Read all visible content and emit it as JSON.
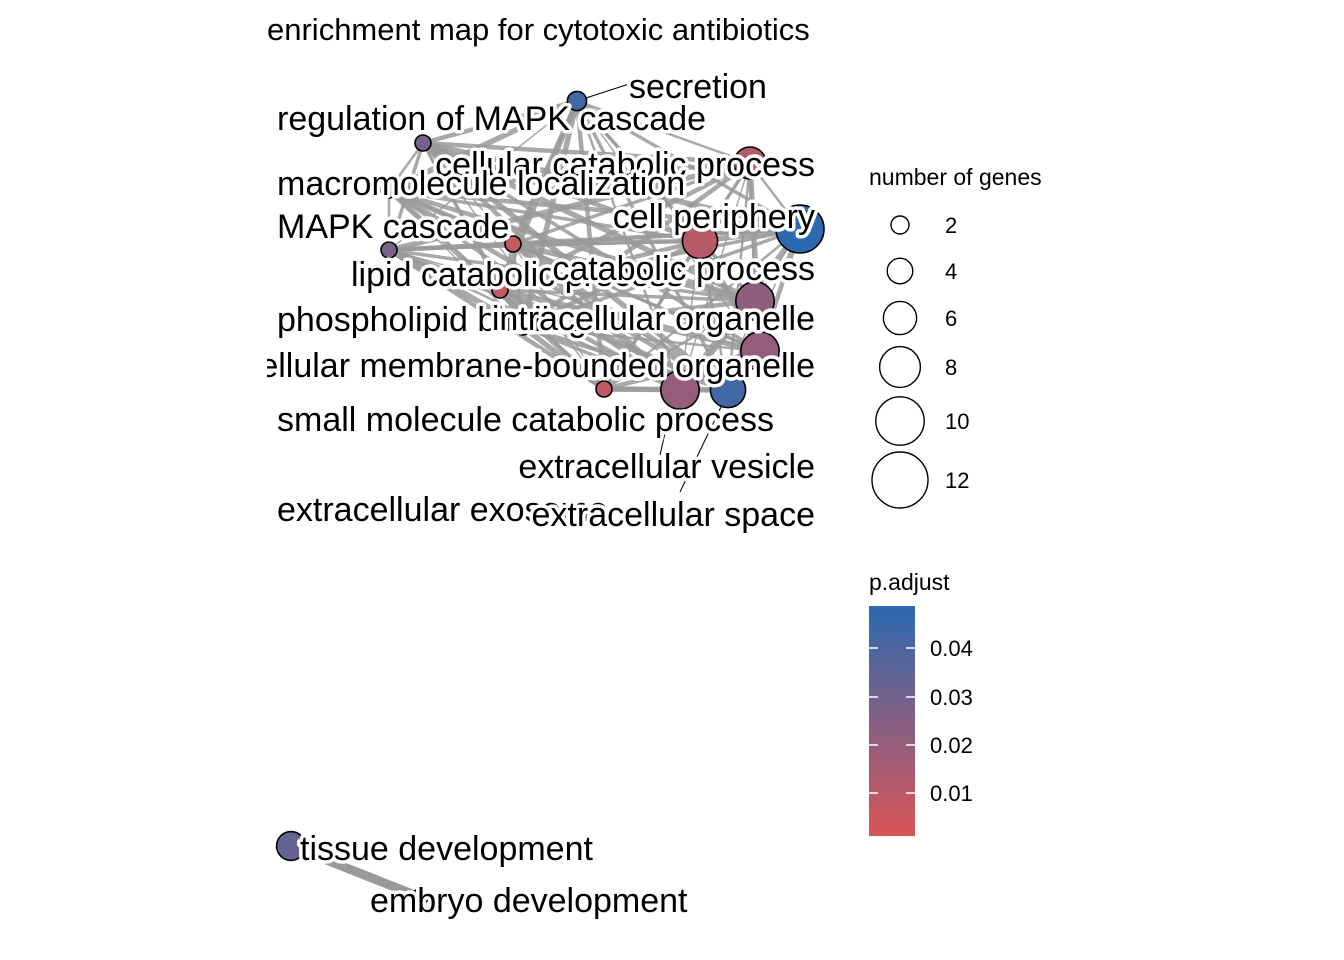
{
  "title": "enrichment map for cytotoxic antibiotics",
  "legend": {
    "size_title": "number of genes",
    "size_values": [
      "2",
      "4",
      "6",
      "8",
      "10",
      "12"
    ],
    "color_title": "p.adjust",
    "color_ticks": [
      "0.04",
      "0.03",
      "0.02",
      "0.01"
    ],
    "gradient": {
      "low": "#DA5656",
      "high": "#2C69B0"
    }
  },
  "nodes": [
    {
      "id": "secretion",
      "label": "secretion",
      "genes": 3,
      "p_adjust": 0.042
    },
    {
      "id": "mapk-reg",
      "label": "regulation of MAPK cascade",
      "genes": 2,
      "p_adjust": 0.028
    },
    {
      "id": "cell-catabolic",
      "label": "cellular catabolic process",
      "genes": 7,
      "p_adjust": 0.011
    },
    {
      "id": "macromolecule",
      "label": "macromolecule localization",
      "genes": 2,
      "p_adjust": 0.038
    },
    {
      "id": "cell-periphery",
      "label": "cell periphery",
      "genes": 12,
      "p_adjust": 0.048
    },
    {
      "id": "mapk",
      "label": "MAPK cascade",
      "genes": 2,
      "p_adjust": 0.027
    },
    {
      "id": "lipid-catabolic",
      "label": "lipid catabolic process",
      "genes": 2,
      "p_adjust": 0.006
    },
    {
      "id": "catabolic",
      "label": "catabolic process",
      "genes": 8,
      "p_adjust": 0.01
    },
    {
      "id": "phospholipid",
      "label": "phospholipid binding",
      "genes": 2,
      "p_adjust": 0.006
    },
    {
      "id": "organelle",
      "label": "intracellular organelle",
      "genes": 9,
      "p_adjust": 0.021
    },
    {
      "id": "membrane-organelle",
      "label": "intracellular membrane-bounded organelle",
      "genes": 9,
      "p_adjust": 0.02
    },
    {
      "id": "small-molecule",
      "label": "small molecule catabolic process",
      "genes": 2,
      "p_adjust": 0.007
    },
    {
      "id": "ec-vesicle",
      "label": "extracellular vesicle",
      "genes": 9,
      "p_adjust": 0.019
    },
    {
      "id": "ec-exosome",
      "label": "extracellular exosome",
      "genes": 2,
      "p_adjust": 0.008
    },
    {
      "id": "ec-space",
      "label": "extracellular space",
      "genes": 8,
      "p_adjust": 0.042
    },
    {
      "id": "tissue",
      "label": "tissue development",
      "genes": 6,
      "p_adjust": 0.033
    },
    {
      "id": "embryo",
      "label": "embryo development",
      "genes": 2,
      "p_adjust": 0.03
    }
  ]
}
